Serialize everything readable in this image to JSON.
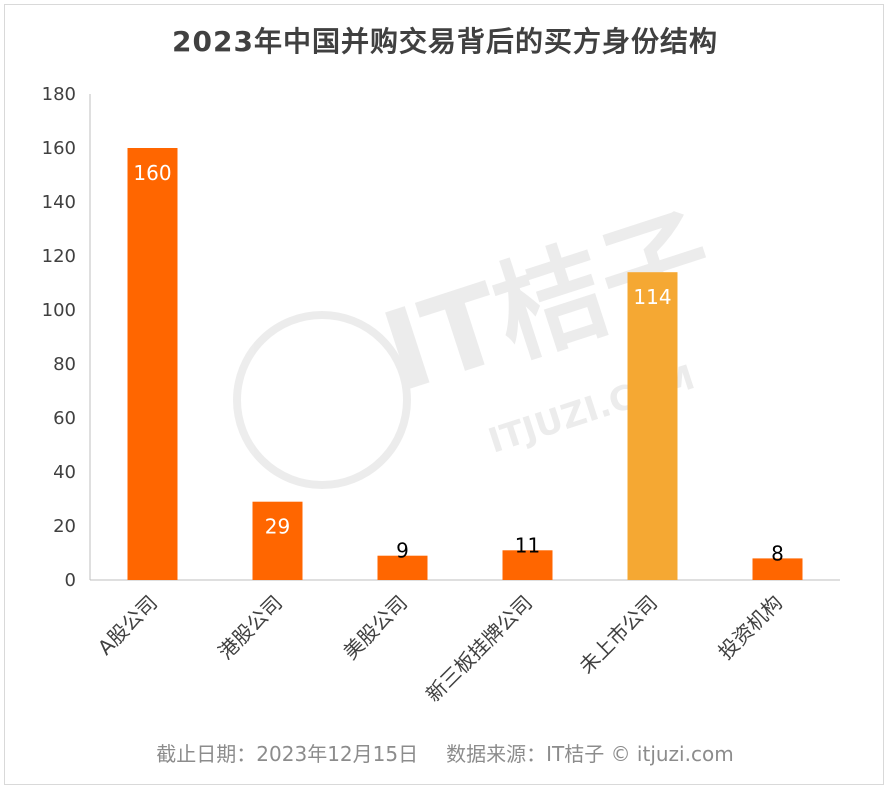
{
  "chart_data": {
    "type": "bar",
    "title": "2023年中国并购交易背后的买方身份结构",
    "categories": [
      "A股公司",
      "港股公司",
      "美股公司",
      "新三板挂牌公司",
      "未上市公司",
      "投资机构"
    ],
    "values": [
      160,
      29,
      9,
      11,
      114,
      8
    ],
    "bar_colors": [
      "#ff6600",
      "#ff6600",
      "#ff6600",
      "#ff6600",
      "#f5a833",
      "#ff6600"
    ],
    "label_colors": [
      "#ffffff",
      "#ffffff",
      "#000000",
      "#000000",
      "#ffffff",
      "#000000"
    ],
    "yticks": [
      0,
      20,
      40,
      60,
      80,
      100,
      120,
      140,
      160,
      180
    ],
    "ylim": [
      0,
      180
    ],
    "grid": false,
    "legend": "none"
  },
  "footer": {
    "date": "截止日期：2023年12月15日",
    "source": "数据来源：IT桔子 © itjuzi.com"
  },
  "watermark": {
    "brand": "IT桔子",
    "site": "ITJUZI.COM"
  }
}
